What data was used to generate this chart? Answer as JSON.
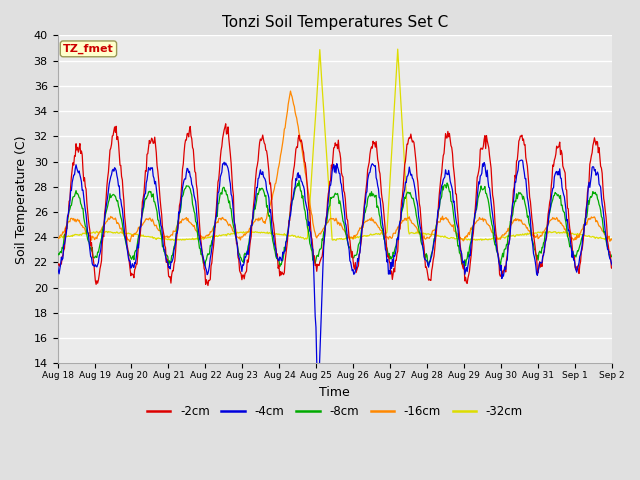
{
  "title": "Tonzi Soil Temperatures Set C",
  "xlabel": "Time",
  "ylabel": "Soil Temperature (C)",
  "ylim": [
    14,
    40
  ],
  "yticks": [
    14,
    16,
    18,
    20,
    22,
    24,
    26,
    28,
    30,
    32,
    34,
    36,
    38,
    40
  ],
  "annotation_text": "TZ_fmet",
  "line_colors": {
    "-2cm": "#dd0000",
    "-4cm": "#0000dd",
    "-8cm": "#00aa00",
    "-16cm": "#ff8800",
    "-32cm": "#dddd00"
  },
  "legend_labels": [
    "-2cm",
    "-4cm",
    "-8cm",
    "-16cm",
    "-32cm"
  ],
  "n_days": 15,
  "points_per_day": 48,
  "start_day": 18,
  "background_color": "#e0e0e0",
  "plot_bg_color": "#ebebeb"
}
